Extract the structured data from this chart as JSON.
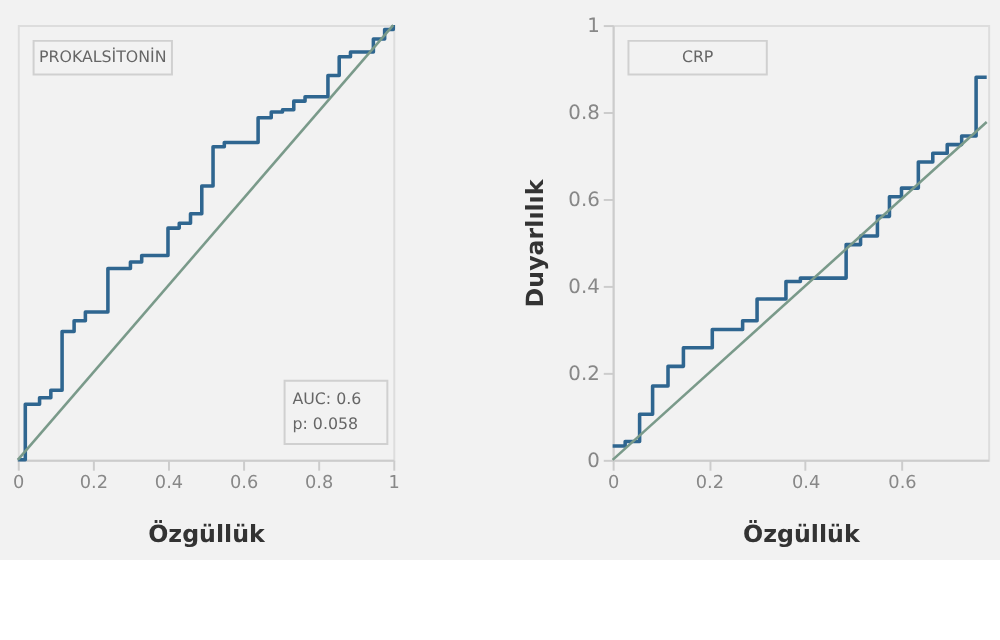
{
  "chart_data": [
    {
      "type": "step",
      "xlabel": "Özgüllük",
      "xlim": [
        0,
        1
      ],
      "ylim": [
        0,
        1
      ],
      "xticks": [
        0,
        0.2,
        0.4,
        0.6,
        0.8,
        1
      ],
      "yticks": [
        0,
        0.2,
        0.4,
        0.6,
        0.8,
        1
      ],
      "tick_labels": "x",
      "grid": false,
      "annotations": [
        "PROKALSİTONİN",
        "AUC: 0.6",
        "p: 0.058"
      ],
      "series": [
        {
          "color": "#2f6690",
          "x": [
            0,
            0.02,
            0.058,
            0.088,
            0.118,
            0.15,
            0.18,
            0.24,
            0.3,
            0.33,
            0.4,
            0.43,
            0.46,
            0.49,
            0.52,
            0.55,
            0.64,
            0.675,
            0.705,
            0.735,
            0.765,
            0.826,
            0.856,
            0.886,
            0.947,
            0.977,
            1
          ],
          "values": [
            0,
            0.128,
            0.143,
            0.16,
            0.295,
            0.32,
            0.34,
            0.44,
            0.455,
            0.47,
            0.533,
            0.544,
            0.566,
            0.63,
            0.72,
            0.73,
            0.787,
            0.8,
            0.805,
            0.825,
            0.835,
            0.884,
            0.927,
            0.938,
            0.968,
            0.99,
            1
          ]
        },
        {
          "type": "line",
          "color": "#7a9a8a",
          "x": [
            0,
            1
          ],
          "values": [
            0,
            1
          ]
        }
      ]
    },
    {
      "type": "step",
      "xlabel": "Özgüllük",
      "ylabel": "Duyarlılık",
      "xlim": [
        0,
        0.78
      ],
      "ylim": [
        0,
        1
      ],
      "xticks": [
        0,
        0.2,
        0.4,
        0.6
      ],
      "yticks": [
        0,
        0.2,
        0.4,
        0.6,
        0.8,
        1
      ],
      "grid": false,
      "annotations": [
        "CRP"
      ],
      "series": [
        {
          "color": "#2f6690",
          "x": [
            0,
            0.026,
            0.056,
            0.083,
            0.115,
            0.147,
            0.207,
            0.27,
            0.3,
            0.36,
            0.39,
            0.485,
            0.515,
            0.55,
            0.575,
            0.6,
            0.635,
            0.665,
            0.695,
            0.725,
            0.755,
            0.777
          ],
          "values": [
            0.032,
            0.042,
            0.105,
            0.17,
            0.215,
            0.258,
            0.3,
            0.32,
            0.37,
            0.41,
            0.418,
            0.495,
            0.515,
            0.56,
            0.605,
            0.625,
            0.685,
            0.705,
            0.725,
            0.745,
            0.88,
            0.88
          ]
        },
        {
          "type": "line",
          "color": "#7a9a8a",
          "x": [
            0,
            0.777
          ],
          "values": [
            0,
            0.777
          ]
        }
      ]
    }
  ]
}
